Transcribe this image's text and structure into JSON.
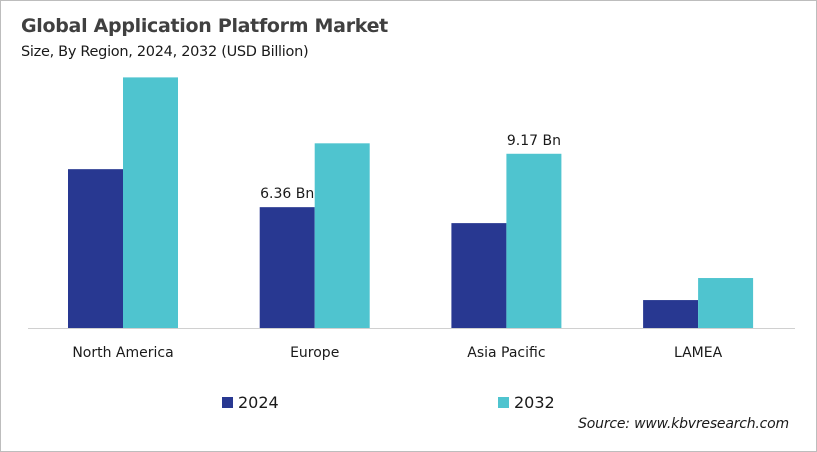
{
  "chart_data": {
    "type": "bar",
    "title": "Global Application Platform Market",
    "subtitle": "Size, By Region, 2024, 2032 (USD Billion)",
    "categories": [
      "North America",
      "Europe",
      "Asia Pacific",
      "LAMEA"
    ],
    "series": [
      {
        "name": "2024",
        "color": "#283891",
        "values": [
          8.36,
          6.36,
          5.52,
          1.47
        ],
        "labels": [
          null,
          "6.36 Bn",
          null,
          null
        ]
      },
      {
        "name": "2032",
        "color": "#4fc4cf",
        "values": [
          13.19,
          9.72,
          9.17,
          2.63
        ],
        "labels": [
          null,
          null,
          "9.17 Bn",
          null
        ]
      }
    ],
    "xlabel": "",
    "ylabel": "",
    "ylim": [
      0,
      13.5
    ],
    "grid": false,
    "legend_position": "bottom",
    "source": "Source: www.kbvresearch.com"
  }
}
